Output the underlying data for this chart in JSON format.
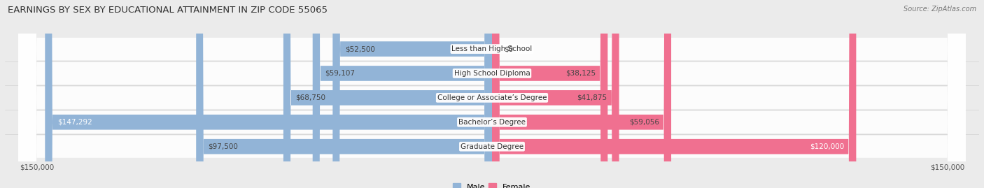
{
  "title": "EARNINGS BY SEX BY EDUCATIONAL ATTAINMENT IN ZIP CODE 55065",
  "source": "Source: ZipAtlas.com",
  "categories": [
    "Less than High School",
    "High School Diploma",
    "College or Associate’s Degree",
    "Bachelor’s Degree",
    "Graduate Degree"
  ],
  "male_values": [
    52500,
    59107,
    68750,
    147292,
    97500
  ],
  "female_values": [
    0,
    38125,
    41875,
    59056,
    120000
  ],
  "male_color": "#92b4d7",
  "female_color": "#f07090",
  "axis_max": 150000,
  "bg_color": "#ebebeb",
  "row_bg_color": "#f5f5f5",
  "title_fontsize": 9.5,
  "label_fontsize": 7.5,
  "tick_fontsize": 7.5,
  "legend_fontsize": 8
}
